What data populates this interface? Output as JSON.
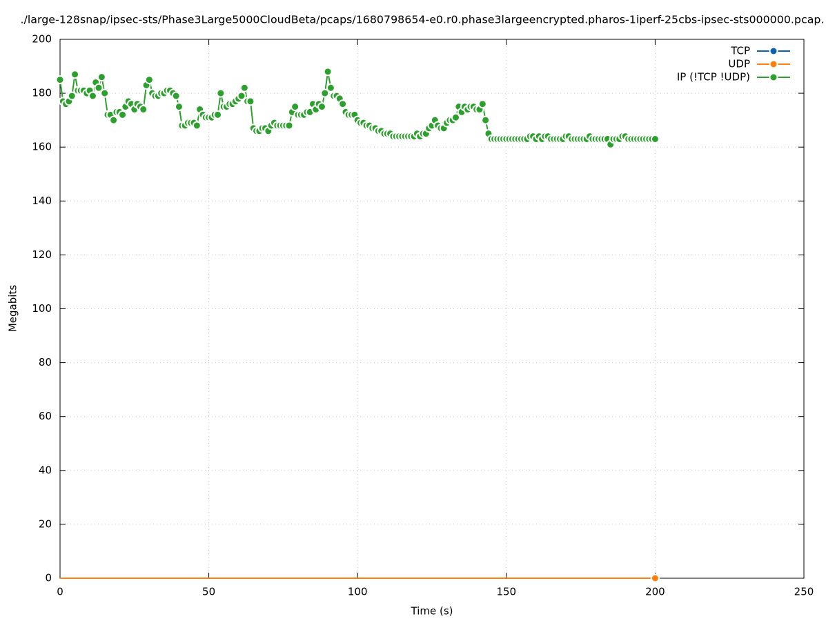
{
  "chart_data": {
    "type": "line",
    "title": "./large-128snap/ipsec-sts/Phase3Large5000CloudBeta/pcaps/1680798654-e0.r0.phase3largeencrypted.pharos-1iperf-25cbs-ipsec-sts000000.pcap.",
    "x_label": "Time (s)",
    "y_label": "Megabits",
    "xlim": [
      0,
      250
    ],
    "xticks": [
      0,
      50,
      100,
      150,
      200,
      250
    ],
    "ylim": [
      0,
      200
    ],
    "yticks": [
      0,
      20,
      40,
      60,
      80,
      100,
      120,
      140,
      160,
      180,
      200
    ],
    "grid": true,
    "legend": "top-right",
    "x": [
      0,
      1,
      2,
      3,
      4,
      5,
      6,
      7,
      8,
      9,
      10,
      11,
      12,
      13,
      14,
      15,
      16,
      17,
      18,
      19,
      20,
      21,
      22,
      23,
      24,
      25,
      26,
      27,
      28,
      29,
      30,
      31,
      32,
      33,
      34,
      35,
      36,
      37,
      38,
      39,
      40,
      41,
      42,
      43,
      44,
      45,
      46,
      47,
      48,
      49,
      50,
      51,
      52,
      53,
      54,
      55,
      56,
      57,
      58,
      59,
      60,
      61,
      62,
      63,
      64,
      65,
      66,
      67,
      68,
      69,
      70,
      71,
      72,
      73,
      74,
      75,
      76,
      77,
      78,
      79,
      80,
      81,
      82,
      83,
      84,
      85,
      86,
      87,
      88,
      89,
      90,
      91,
      92,
      93,
      94,
      95,
      96,
      97,
      98,
      99,
      100,
      101,
      102,
      103,
      104,
      105,
      106,
      107,
      108,
      109,
      110,
      111,
      112,
      113,
      114,
      115,
      116,
      117,
      118,
      119,
      120,
      121,
      122,
      123,
      124,
      125,
      126,
      127,
      128,
      129,
      130,
      131,
      132,
      133,
      134,
      135,
      136,
      137,
      138,
      139,
      140,
      141,
      142,
      143,
      144,
      145,
      146,
      147,
      148,
      149,
      150,
      151,
      152,
      153,
      154,
      155,
      156,
      157,
      158,
      159,
      160,
      161,
      162,
      163,
      164,
      165,
      166,
      167,
      168,
      169,
      170,
      171,
      172,
      173,
      174,
      175,
      176,
      177,
      178,
      179,
      180,
      181,
      182,
      183,
      184,
      185,
      186,
      187,
      188,
      189,
      190,
      191,
      192,
      193,
      194,
      195,
      196,
      197,
      198,
      199,
      200
    ],
    "series": [
      {
        "name": "TCP",
        "color": "#0b62b0",
        "values": [
          0,
          0,
          0,
          0,
          0,
          0,
          0,
          0,
          0,
          0,
          0,
          0,
          0,
          0,
          0,
          0,
          0,
          0,
          0,
          0,
          0,
          0,
          0,
          0,
          0,
          0,
          0,
          0,
          0,
          0,
          0,
          0,
          0,
          0,
          0,
          0,
          0,
          0,
          0,
          0,
          0,
          0,
          0,
          0,
          0,
          0,
          0,
          0,
          0,
          0,
          0,
          0,
          0,
          0,
          0,
          0,
          0,
          0,
          0,
          0,
          0,
          0,
          0,
          0,
          0,
          0,
          0,
          0,
          0,
          0,
          0,
          0,
          0,
          0,
          0,
          0,
          0,
          0,
          0,
          0,
          0,
          0,
          0,
          0,
          0,
          0,
          0,
          0,
          0,
          0,
          0,
          0,
          0,
          0,
          0,
          0,
          0,
          0,
          0,
          0,
          0,
          0,
          0,
          0,
          0,
          0,
          0,
          0,
          0,
          0,
          0,
          0,
          0,
          0,
          0,
          0,
          0,
          0,
          0,
          0,
          0,
          0,
          0,
          0,
          0,
          0,
          0,
          0,
          0,
          0,
          0,
          0,
          0,
          0,
          0,
          0,
          0,
          0,
          0,
          0,
          0,
          0,
          0,
          0,
          0,
          0,
          0,
          0,
          0,
          0,
          0,
          0,
          0,
          0,
          0,
          0,
          0,
          0,
          0,
          0,
          0,
          0,
          0,
          0,
          0,
          0,
          0,
          0,
          0,
          0,
          0,
          0,
          0,
          0,
          0,
          0,
          0,
          0,
          0,
          0,
          0,
          0,
          0,
          0,
          0,
          0,
          0,
          0,
          0,
          0,
          0,
          0,
          0,
          0,
          0,
          0,
          0,
          0,
          0,
          0,
          0
        ]
      },
      {
        "name": "UDP",
        "color": "#ff7f0e",
        "values": [
          0,
          0,
          0,
          0,
          0,
          0,
          0,
          0,
          0,
          0,
          0,
          0,
          0,
          0,
          0,
          0,
          0,
          0,
          0,
          0,
          0,
          0,
          0,
          0,
          0,
          0,
          0,
          0,
          0,
          0,
          0,
          0,
          0,
          0,
          0,
          0,
          0,
          0,
          0,
          0,
          0,
          0,
          0,
          0,
          0,
          0,
          0,
          0,
          0,
          0,
          0,
          0,
          0,
          0,
          0,
          0,
          0,
          0,
          0,
          0,
          0,
          0,
          0,
          0,
          0,
          0,
          0,
          0,
          0,
          0,
          0,
          0,
          0,
          0,
          0,
          0,
          0,
          0,
          0,
          0,
          0,
          0,
          0,
          0,
          0,
          0,
          0,
          0,
          0,
          0,
          0,
          0,
          0,
          0,
          0,
          0,
          0,
          0,
          0,
          0,
          0,
          0,
          0,
          0,
          0,
          0,
          0,
          0,
          0,
          0,
          0,
          0,
          0,
          0,
          0,
          0,
          0,
          0,
          0,
          0,
          0,
          0,
          0,
          0,
          0,
          0,
          0,
          0,
          0,
          0,
          0,
          0,
          0,
          0,
          0,
          0,
          0,
          0,
          0,
          0,
          0,
          0,
          0,
          0,
          0,
          0,
          0,
          0,
          0,
          0,
          0,
          0,
          0,
          0,
          0,
          0,
          0,
          0,
          0,
          0,
          0,
          0,
          0,
          0,
          0,
          0,
          0,
          0,
          0,
          0,
          0,
          0,
          0,
          0,
          0,
          0,
          0,
          0,
          0,
          0,
          0,
          0,
          0,
          0,
          0,
          0,
          0,
          0,
          0,
          0,
          0,
          0,
          0,
          0,
          0,
          0,
          0,
          0,
          0,
          0,
          0
        ]
      },
      {
        "name": "IP (!TCP  !UDP)",
        "color": "#2ca02c",
        "values": [
          185,
          177,
          176,
          177,
          179,
          187,
          181,
          181,
          181,
          180,
          181,
          179,
          184,
          182,
          186,
          180,
          172,
          172,
          170,
          173,
          173,
          172,
          175,
          177,
          176,
          174,
          176,
          175,
          174,
          183,
          185,
          180,
          179,
          179,
          180,
          180,
          181,
          181,
          180,
          179,
          175,
          168,
          168,
          169,
          169,
          169,
          168,
          174,
          172,
          171,
          171,
          171,
          172,
          172,
          180,
          175,
          175,
          176,
          176,
          177,
          178,
          179,
          182,
          177,
          177,
          167,
          166,
          166,
          167,
          167,
          166,
          168,
          169,
          168,
          168,
          168,
          168,
          168,
          173,
          175,
          172,
          172,
          172,
          173,
          173,
          176,
          174,
          176,
          175,
          180,
          188,
          182,
          179,
          179,
          178,
          176,
          173,
          172,
          172,
          172,
          170,
          169,
          169,
          168,
          168,
          167,
          167,
          166,
          166,
          165,
          165,
          165,
          164,
          164,
          164,
          164,
          164,
          164,
          164,
          164,
          165,
          164,
          165,
          165,
          167,
          168,
          170,
          168,
          167,
          167,
          169,
          170,
          170,
          171,
          175,
          173,
          175,
          174,
          175,
          175,
          174,
          174,
          176,
          170,
          165,
          163,
          163,
          163,
          163,
          163,
          163,
          163,
          163,
          163,
          163,
          163,
          163,
          163,
          164,
          164,
          163,
          164,
          163,
          164,
          164,
          163,
          163,
          163,
          163,
          163,
          164,
          164,
          163,
          163,
          163,
          163,
          163,
          163,
          164,
          163,
          163,
          163,
          163,
          163,
          163,
          161,
          163,
          163,
          163,
          164,
          164,
          163,
          163,
          163,
          163,
          163,
          163,
          163,
          163,
          163,
          163
        ]
      }
    ]
  }
}
